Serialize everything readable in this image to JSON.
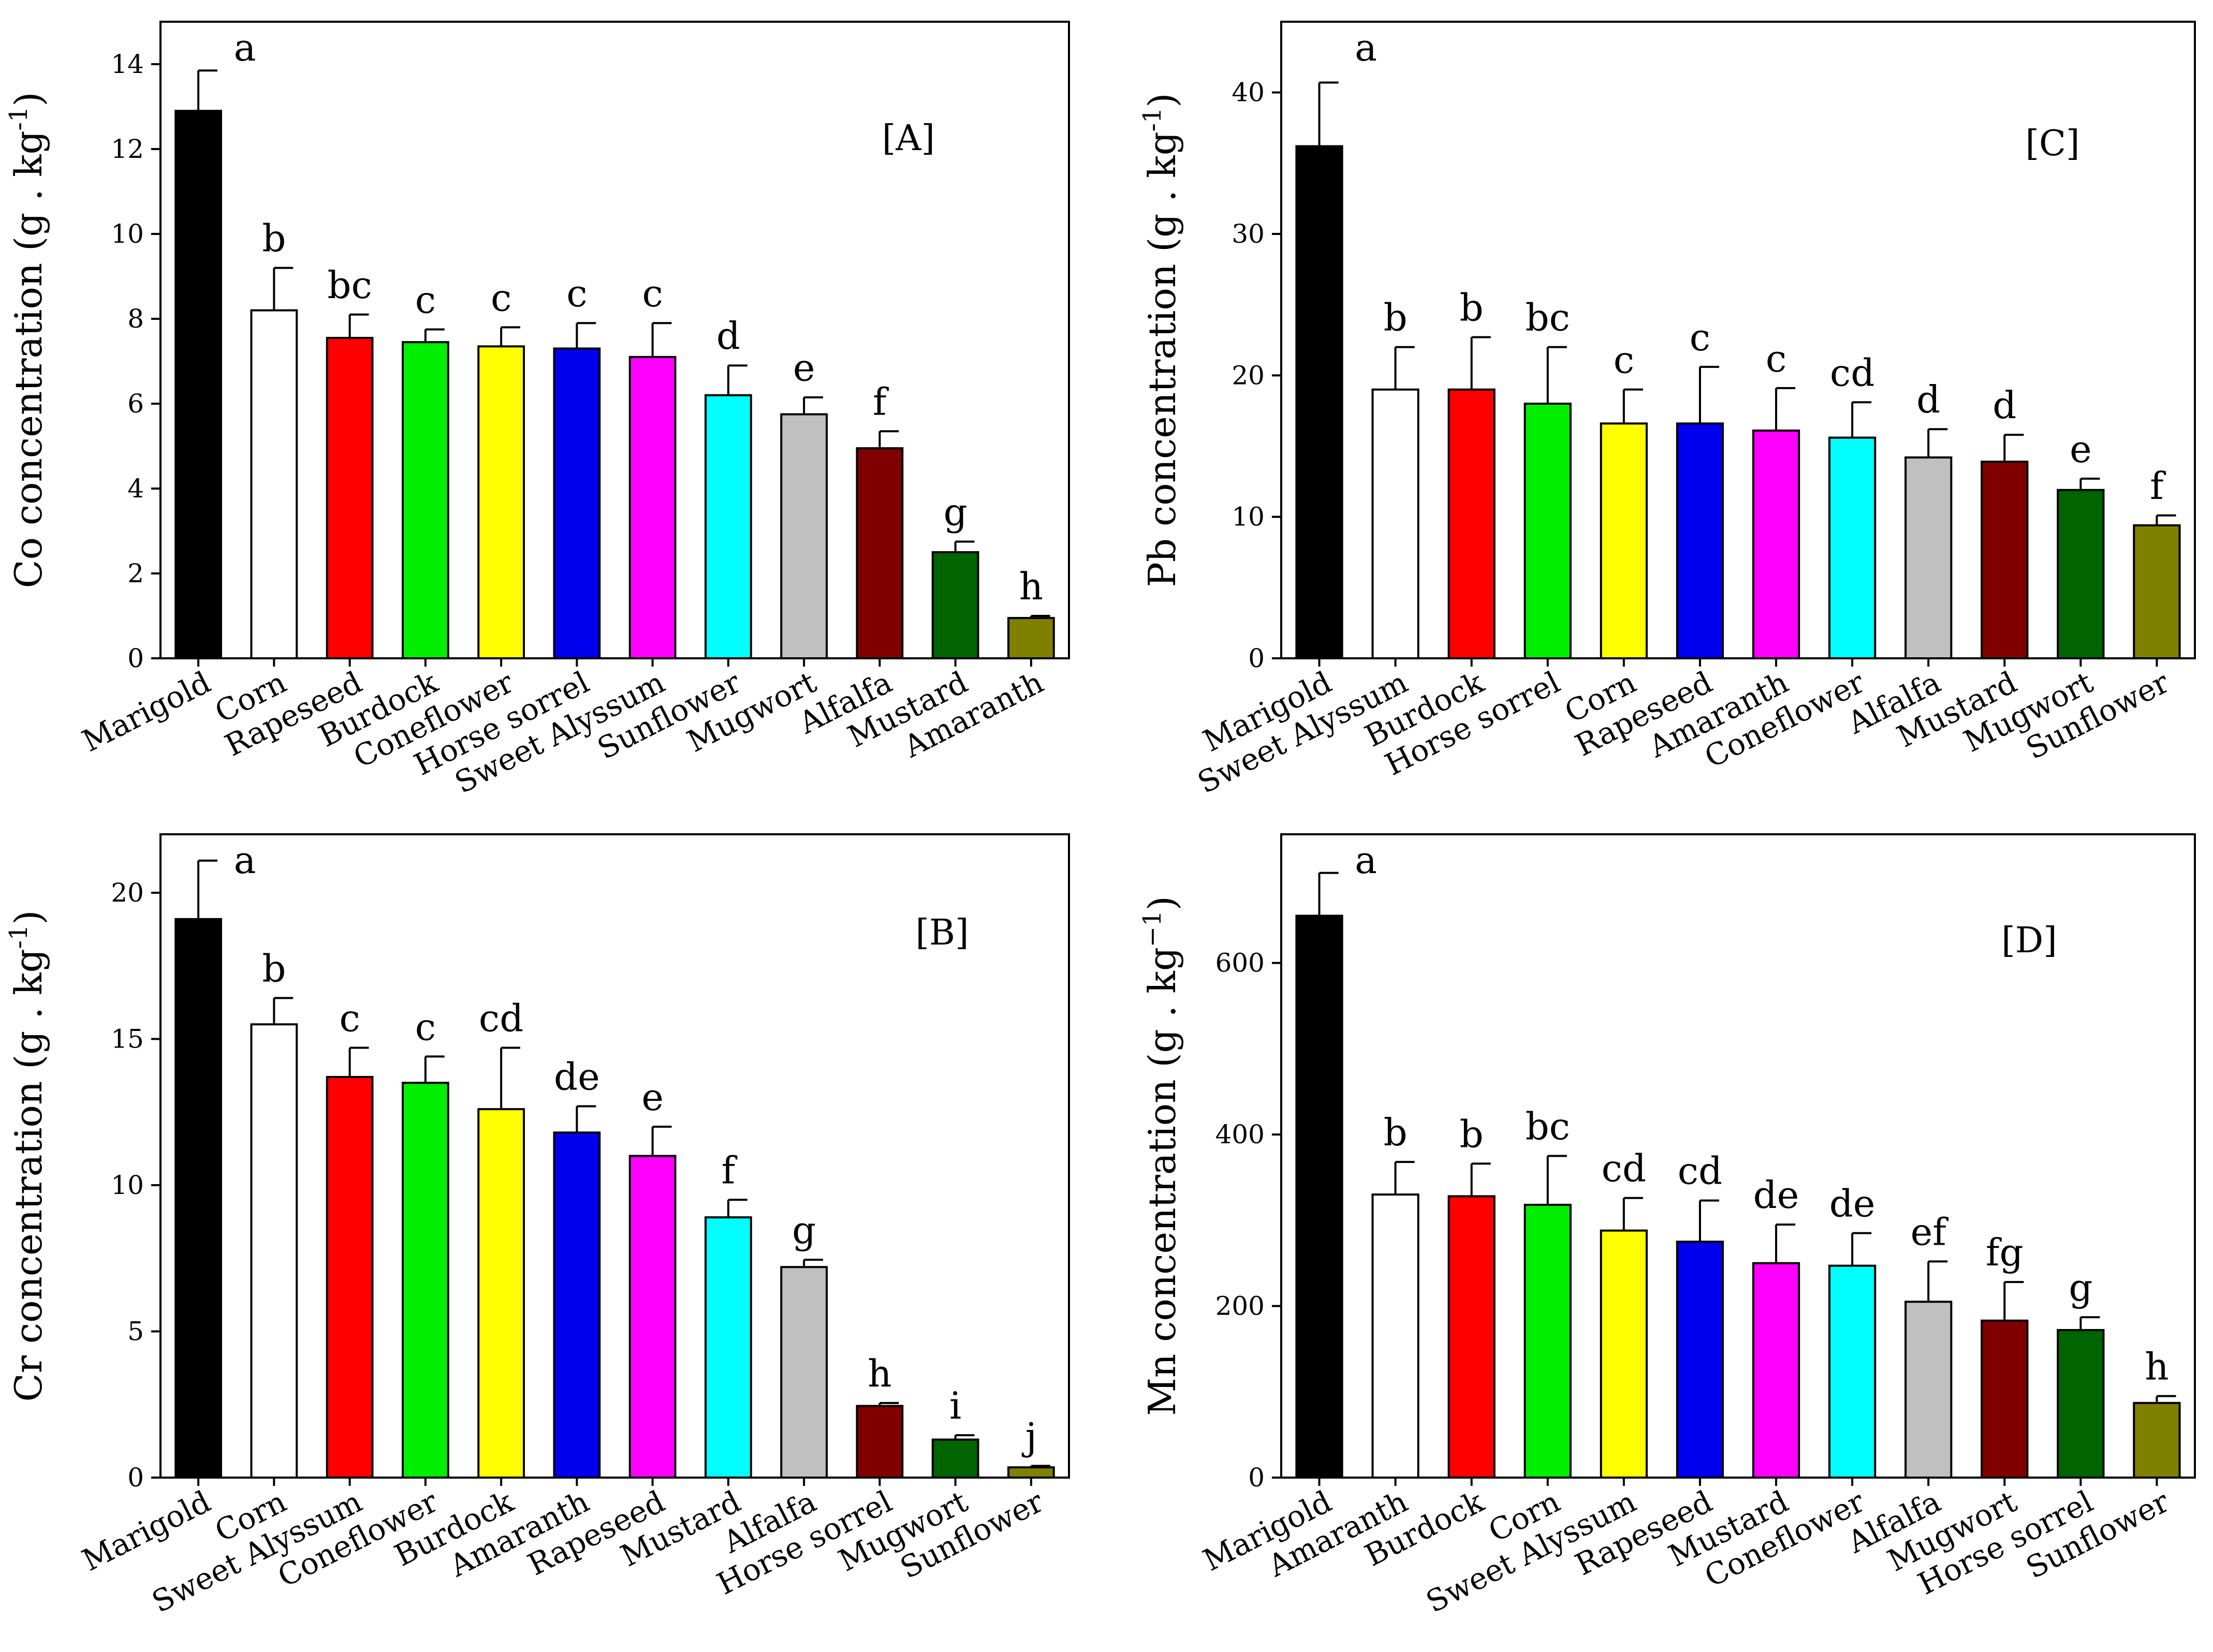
{
  "chart_data": [
    {
      "type": "bar",
      "panel_label": "[A]",
      "ylabel": "Co concentration (g . kg",
      "ylabel_exp": "-1",
      "ylabel_tail": ")",
      "ylim": [
        0,
        15
      ],
      "yticks": [
        0,
        2,
        4,
        6,
        8,
        10,
        12,
        14
      ],
      "categories": [
        "Marigold",
        "Corn",
        "Rapeseed",
        "Burdock",
        "Coneflower",
        "Horse sorrel",
        "Sweet Alyssum",
        "Sunflower",
        "Mugwort",
        "Alfalfa",
        "Mustard",
        "Amaranth"
      ],
      "values": [
        12.9,
        8.2,
        7.55,
        7.45,
        7.35,
        7.3,
        7.1,
        6.2,
        5.75,
        4.95,
        2.5,
        0.95
      ],
      "errors": [
        0.95,
        1.0,
        0.55,
        0.3,
        0.45,
        0.6,
        0.8,
        0.7,
        0.4,
        0.4,
        0.25,
        0.05
      ],
      "letters": [
        "a",
        "b",
        "bc",
        "c",
        "c",
        "c",
        "c",
        "d",
        "e",
        "f",
        "g",
        "h"
      ],
      "colors": [
        "#000000",
        "#ffffff",
        "#ff0000",
        "#00ee00",
        "#ffff00",
        "#0000ee",
        "#ff00ff",
        "#00ffff",
        "#c0c0c0",
        "#800000",
        "#006400",
        "#808000"
      ]
    },
    {
      "type": "bar",
      "panel_label": "[C]",
      "ylabel": "Pb concentration (g . kg",
      "ylabel_exp": "-1",
      "ylabel_tail": ")",
      "ylim": [
        0,
        45
      ],
      "yticks": [
        0,
        10,
        20,
        30,
        40
      ],
      "categories": [
        "Marigold",
        "Sweet Alyssum",
        "Burdock",
        "Horse sorrel",
        "Corn",
        "Rapeseed",
        "Amaranth",
        "Coneflower",
        "Alfalfa",
        "Mustard",
        "Mugwort",
        "Sunflower"
      ],
      "values": [
        36.2,
        19.0,
        19.0,
        18.0,
        16.6,
        16.6,
        16.1,
        15.6,
        14.2,
        13.9,
        11.9,
        9.4
      ],
      "errors": [
        4.5,
        3.0,
        3.7,
        4.0,
        2.4,
        4.0,
        3.0,
        2.5,
        2.0,
        1.9,
        0.8,
        0.7
      ],
      "letters": [
        "a",
        "b",
        "b",
        "bc",
        "c",
        "c",
        "c",
        "cd",
        "d",
        "d",
        "e",
        "f"
      ],
      "colors": [
        "#000000",
        "#ffffff",
        "#ff0000",
        "#00ee00",
        "#ffff00",
        "#0000ee",
        "#ff00ff",
        "#00ffff",
        "#c0c0c0",
        "#800000",
        "#006400",
        "#808000"
      ]
    },
    {
      "type": "bar",
      "panel_label": "[B]",
      "ylabel": "Cr concentration (g . kg",
      "ylabel_exp": "-1",
      "ylabel_tail": ")",
      "ylim": [
        0,
        22
      ],
      "yticks": [
        0,
        5,
        10,
        15,
        20
      ],
      "categories": [
        "Marigold",
        "Corn",
        "Sweet Alyssum",
        "Coneflower",
        "Burdock",
        "Amaranth",
        "Rapeseed",
        "Mustard",
        "Alfalfa",
        "Horse sorrel",
        "Mugwort",
        "Sunflower"
      ],
      "values": [
        19.1,
        15.5,
        13.7,
        13.5,
        12.6,
        11.8,
        11.0,
        8.9,
        7.2,
        2.45,
        1.3,
        0.35
      ],
      "errors": [
        2.0,
        0.9,
        1.0,
        0.9,
        2.1,
        0.9,
        1.0,
        0.6,
        0.25,
        0.1,
        0.15,
        0.05
      ],
      "letters": [
        "a",
        "b",
        "c",
        "c",
        "cd",
        "de",
        "e",
        "f",
        "g",
        "h",
        "i",
        "j"
      ],
      "colors": [
        "#000000",
        "#ffffff",
        "#ff0000",
        "#00ee00",
        "#ffff00",
        "#0000ee",
        "#ff00ff",
        "#00ffff",
        "#c0c0c0",
        "#800000",
        "#006400",
        "#808000"
      ]
    },
    {
      "type": "bar",
      "panel_label": "[D]",
      "ylabel": "Mn concentration (g . kg",
      "ylabel_exp": "−1",
      "ylabel_tail": ")",
      "ylim": [
        0,
        750
      ],
      "yticks": [
        0,
        200,
        400,
        600
      ],
      "categories": [
        "Marigold",
        "Amaranth",
        "Burdock",
        "Corn",
        "Sweet Alyssum",
        "Rapeseed",
        "Mustard",
        "Coneflower",
        "Alfalfa",
        "Mugwort",
        "Horse sorrel",
        "Sunflower"
      ],
      "values": [
        655,
        330,
        328,
        318,
        288,
        275,
        250,
        247,
        205,
        183,
        172,
        87
      ],
      "errors": [
        50,
        38,
        38,
        57,
        38,
        48,
        45,
        38,
        47,
        45,
        15,
        8
      ],
      "letters": [
        "a",
        "b",
        "b",
        "bc",
        "cd",
        "cd",
        "de",
        "de",
        "ef",
        "fg",
        "g",
        "h"
      ],
      "colors": [
        "#000000",
        "#ffffff",
        "#ff0000",
        "#00ee00",
        "#ffff00",
        "#0000ee",
        "#ff00ff",
        "#00ffff",
        "#c0c0c0",
        "#800000",
        "#006400",
        "#808000"
      ]
    }
  ]
}
